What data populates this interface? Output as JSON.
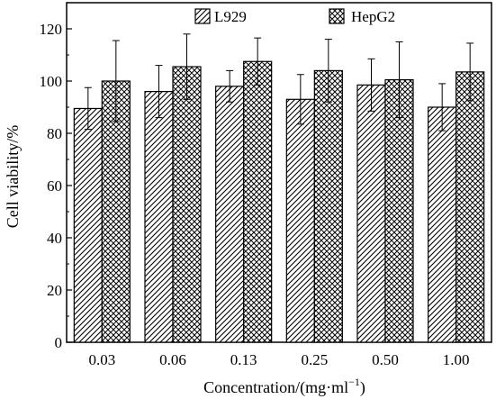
{
  "chart_data": {
    "type": "bar",
    "xlabel": "Concentration/(mg·ml",
    "xlabel_sup": "−1",
    "xlabel_close": ")",
    "ylabel": "Cell viability/%",
    "ylim": [
      0,
      130
    ],
    "yticks": [
      0,
      20,
      40,
      60,
      80,
      100,
      120
    ],
    "categories": [
      "0.03",
      "0.06",
      "0.13",
      "0.25",
      "0.50",
      "1.00"
    ],
    "series": [
      {
        "name": "L929",
        "pattern": "diagonal-hatch",
        "values": [
          89.5,
          96,
          98,
          93,
          98.5,
          90
        ],
        "errors": [
          8,
          10,
          6,
          9.5,
          10,
          9
        ]
      },
      {
        "name": "HepG2",
        "pattern": "crosshatch",
        "values": [
          100,
          105.5,
          107.5,
          104,
          100.5,
          103.5
        ],
        "errors": [
          15.5,
          12.5,
          9,
          12,
          14.5,
          11
        ]
      }
    ],
    "legend_position": "top-right",
    "grid": false
  }
}
